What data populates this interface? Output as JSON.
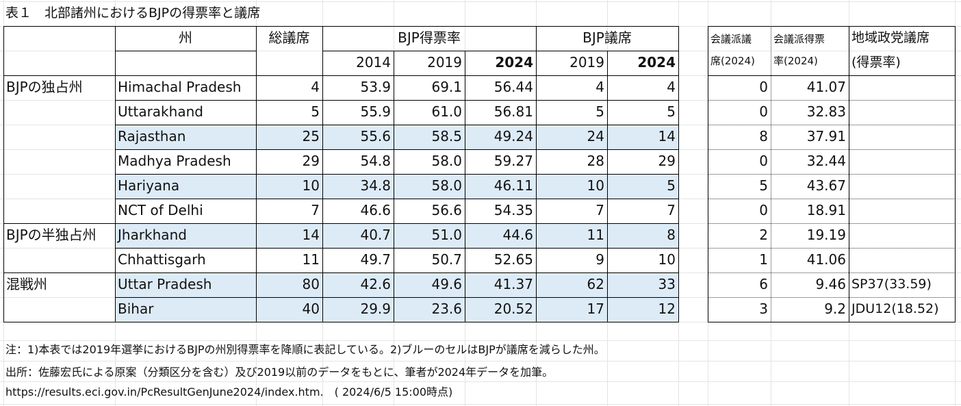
{
  "title": "表１　北部諸州におけるBJPの得票率と議席",
  "headers": {
    "state": "州",
    "total_seats": "総議席",
    "vote_share": "BJP得票率",
    "bjp_seats": "BJP議席",
    "y2014": "2014",
    "y2019": "2019",
    "y2024": "2024",
    "seats_2019": "2019",
    "seats_2024": "2024",
    "congress_seats_l1": "会議派議",
    "congress_seats_l2": "席(2024)",
    "congress_vote_l1": "会議派得票",
    "congress_vote_l2": "率(2024)",
    "regional_l1": "地域政党議席",
    "regional_l2": "(得票率)"
  },
  "groups": [
    "BJPの独占州",
    "BJPの半独占州",
    "混戦州"
  ],
  "rows": [
    {
      "state": "Himachal Pradesh",
      "total": "4",
      "v2014": "53.9",
      "v2019": "69.1",
      "v2024": "56.44",
      "s2019": "4",
      "s2024": "4",
      "cong_seats": "0",
      "cong_vote": "41.07",
      "regional": ""
    },
    {
      "state": "Uttarakhand",
      "total": "5",
      "v2014": "55.9",
      "v2019": "61.0",
      "v2024": "56.81",
      "s2019": "5",
      "s2024": "5",
      "cong_seats": "0",
      "cong_vote": "32.83",
      "regional": ""
    },
    {
      "state": "Rajasthan",
      "total": "25",
      "v2014": "55.6",
      "v2019": "58.5",
      "v2024": "49.24",
      "s2019": "24",
      "s2024": "14",
      "cong_seats": "8",
      "cong_vote": "37.91",
      "regional": ""
    },
    {
      "state": "Madhya Pradesh",
      "total": "29",
      "v2014": "54.8",
      "v2019": "58.0",
      "v2024": "59.27",
      "s2019": "28",
      "s2024": "29",
      "cong_seats": "0",
      "cong_vote": "32.44",
      "regional": ""
    },
    {
      "state": "Hariyana",
      "total": "10",
      "v2014": "34.8",
      "v2019": "58.0",
      "v2024": "46.11",
      "s2019": "10",
      "s2024": "5",
      "cong_seats": "5",
      "cong_vote": "43.67",
      "regional": ""
    },
    {
      "state": "NCT of Delhi",
      "total": "7",
      "v2014": "46.6",
      "v2019": "56.6",
      "v2024": "54.35",
      "s2019": "7",
      "s2024": "7",
      "cong_seats": "0",
      "cong_vote": "18.91",
      "regional": ""
    },
    {
      "state": "Jharkhand",
      "total": "14",
      "v2014": "40.7",
      "v2019": "51.0",
      "v2024": "44.6",
      "s2019": "11",
      "s2024": "8",
      "cong_seats": "2",
      "cong_vote": "19.19",
      "regional": ""
    },
    {
      "state": "Chhattisgarh",
      "total": "11",
      "v2014": "49.7",
      "v2019": "50.7",
      "v2024": "52.65",
      "s2019": "9",
      "s2024": "10",
      "cong_seats": "1",
      "cong_vote": "41.06",
      "regional": ""
    },
    {
      "state": "Uttar Pradesh",
      "total": "80",
      "v2014": "42.6",
      "v2019": "49.6",
      "v2024": "41.37",
      "s2019": "62",
      "s2024": "33",
      "cong_seats": "6",
      "cong_vote": "9.46",
      "regional": "SP37(33.59)"
    },
    {
      "state": "Bihar",
      "total": "40",
      "v2014": "29.9",
      "v2019": "23.6",
      "v2024": "20.52",
      "s2019": "17",
      "s2024": "12",
      "cong_seats": "3",
      "cong_vote": "9.2",
      "regional": "JDU12(18.52)"
    }
  ],
  "notes": {
    "note1": "注：1)本表では2019年選挙におけるBJPの州別得票率を降順に表記している。2)ブルーのセルはBJPが議席を減らした州。",
    "note2": "出所：佐藤宏氏による原案（分類区分を含む）及び2019以前のデータをもとに、筆者が2024年データを加筆。",
    "note3": "https://results.eci.gov.in/PcResultGenJune2024/index.htm.　( 2024/6/5 15:00時点)"
  },
  "colors": {
    "highlight": "#ddebf7",
    "border": "#000000",
    "gridline": "#e4e4e4"
  }
}
